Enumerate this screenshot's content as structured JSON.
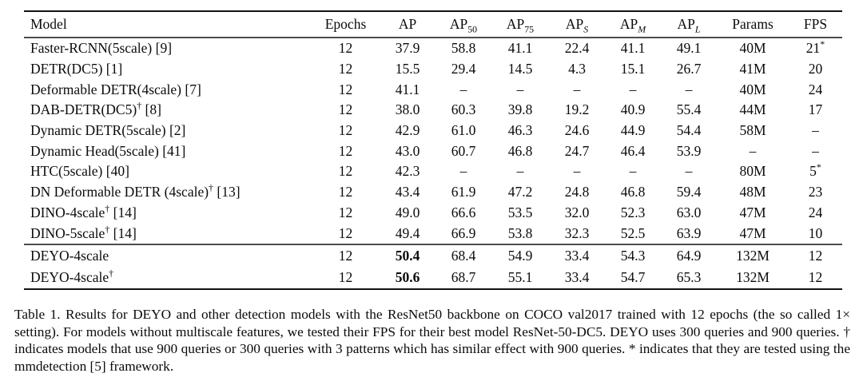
{
  "table": {
    "columns": [
      "Model",
      "Epochs",
      "AP",
      "AP_{50}",
      "AP_{75}",
      "AP_{S}",
      "AP_{M}",
      "AP_{L}",
      "Params",
      "FPS"
    ],
    "rows": [
      [
        "Faster-RCNN(5scale) [9]",
        "12",
        "37.9",
        "58.8",
        "41.1",
        "22.4",
        "41.1",
        "49.1",
        "40M",
        "21^{*}"
      ],
      [
        "DETR(DC5) [1]",
        "12",
        "15.5",
        "29.4",
        "14.5",
        "4.3",
        "15.1",
        "26.7",
        "41M",
        "20"
      ],
      [
        "Deformable DETR(4scale) [7]",
        "12",
        "41.1",
        "–",
        "–",
        "–",
        "–",
        "–",
        "40M",
        "24"
      ],
      [
        "DAB-DETR(DC5)^{†} [8]",
        "12",
        "38.0",
        "60.3",
        "39.8",
        "19.2",
        "40.9",
        "55.4",
        "44M",
        "17"
      ],
      [
        "Dynamic DETR(5scale) [2]",
        "12",
        "42.9",
        "61.0",
        "46.3",
        "24.6",
        "44.9",
        "54.4",
        "58M",
        "–"
      ],
      [
        "Dynamic Head(5scale) [41]",
        "12",
        "43.0",
        "60.7",
        "46.8",
        "24.7",
        "46.4",
        "53.9",
        "–",
        "–"
      ],
      [
        "HTC(5scale) [40]",
        "12",
        "42.3",
        "–",
        "–",
        "–",
        "–",
        "–",
        "80M",
        "5^{*}"
      ],
      [
        "DN Deformable DETR (4scale)^{†} [13]",
        "12",
        "43.4",
        "61.9",
        "47.2",
        "24.8",
        "46.8",
        "59.4",
        "48M",
        "23"
      ],
      [
        "DINO-4scale^{†} [14]",
        "12",
        "49.0",
        "66.6",
        "53.5",
        "32.0",
        "52.3",
        "63.0",
        "47M",
        "24"
      ],
      [
        "DINO-5scale^{†} [14]",
        "12",
        "49.4",
        "66.9",
        "53.8",
        "32.3",
        "52.5",
        "63.9",
        "47M",
        "10"
      ],
      [
        "DEYO-4scale",
        "12",
        "**50.4**",
        "68.4",
        "54.9",
        "33.4",
        "54.3",
        "64.9",
        "132M",
        "12"
      ],
      [
        "DEYO-4scale^{†}",
        "12",
        "**50.6**",
        "68.7",
        "55.1",
        "33.4",
        "54.7",
        "65.3",
        "132M",
        "12"
      ]
    ],
    "deyo_separator_index": 10
  },
  "caption": {
    "text": "Table 1. Results for DEYO and other detection models with the ResNet50 backbone on COCO val2017 trained with 12 epochs (the so called 1× setting). For models without multiscale features, we tested their FPS for their best model ResNet-50-DC5. DEYO uses 300 queries and 900 queries. † indicates models that use 900 queries or 300 queries with 3 patterns which has similar effect with 900 queries. * indicates that they are tested using the mmdetection [5] framework."
  }
}
